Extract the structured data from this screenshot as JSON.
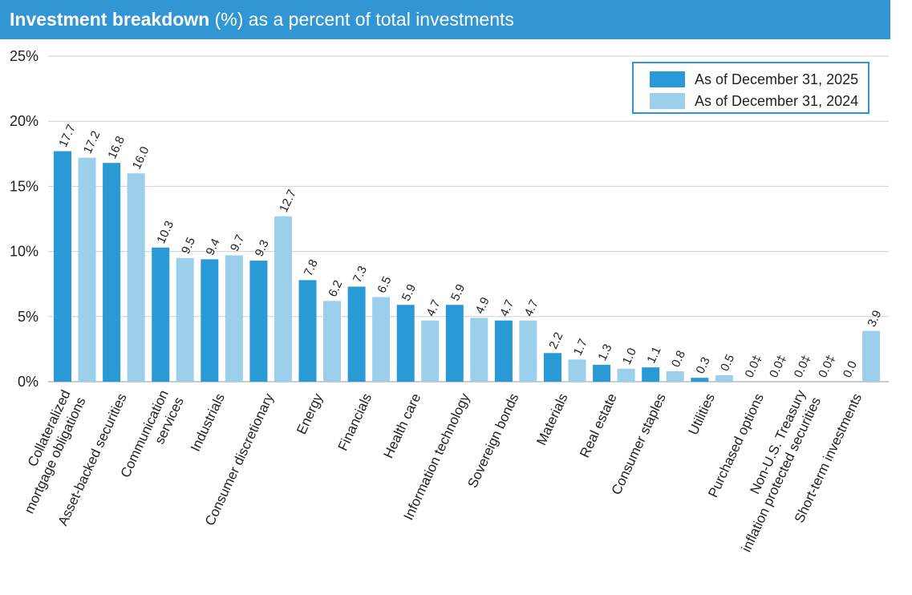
{
  "header": {
    "title_bold": "Investment breakdown",
    "title_rest": " (%) as a percent of total investments"
  },
  "colors": {
    "series_2025": "#2a9ad7",
    "series_2024": "#9bcfeb",
    "header_bg": "#3196d3"
  },
  "chart_data": {
    "type": "bar",
    "title": "Investment breakdown (%) as a percent of total investments",
    "ylim": [
      0,
      25
    ],
    "yticks": [
      "0%",
      "5%",
      "10%",
      "15%",
      "20%",
      "25%"
    ],
    "grid": true,
    "legend_position": "top-right",
    "legend": [
      "As of December 31, 2025",
      "As of December 31, 2024"
    ],
    "categories": [
      [
        "Collateralized",
        "mortgage obligations"
      ],
      [
        "Asset-backed securities"
      ],
      [
        "Communication",
        "services"
      ],
      [
        "Industrials"
      ],
      [
        "Consumer discretionary"
      ],
      [
        "Energy"
      ],
      [
        "Financials"
      ],
      [
        "Health care"
      ],
      [
        "Information technology"
      ],
      [
        "Sovereign bonds"
      ],
      [
        "Materials"
      ],
      [
        "Real estate"
      ],
      [
        "Consumer staples"
      ],
      [
        "Utilities"
      ],
      [
        "Purchased options"
      ],
      [
        "Non-U.S. Treasury",
        "inflation protected securities"
      ],
      [
        "Short-term investments"
      ]
    ],
    "series": [
      {
        "name": "As of December 31, 2025",
        "values": [
          17.7,
          16.8,
          10.3,
          9.4,
          9.3,
          7.8,
          7.3,
          5.9,
          5.9,
          4.7,
          2.2,
          1.3,
          1.1,
          0.3,
          0.0,
          0.0,
          0.0
        ],
        "labels": [
          "17.7",
          "16.8",
          "10.3",
          "9.4",
          "9.3",
          "7.8",
          "7.3",
          "5.9",
          "5.9",
          "4.7",
          "2.2",
          "1.3",
          "1.1",
          "0.3",
          "0.0‡",
          "0.0‡",
          "0.0"
        ]
      },
      {
        "name": "As of December 31, 2024",
        "values": [
          17.2,
          16.0,
          9.5,
          9.7,
          12.7,
          6.2,
          6.5,
          4.7,
          4.9,
          4.7,
          1.7,
          1.0,
          0.8,
          0.5,
          0.0,
          0.0,
          3.9
        ],
        "labels": [
          "17.2",
          "16.0",
          "9.5",
          "9.7",
          "12.7",
          "6.2",
          "6.5",
          "4.7",
          "4.9",
          "4.7",
          "1.7",
          "1.0",
          "0.8",
          "0.5",
          "0.0‡",
          "0.0‡",
          "3.9"
        ]
      }
    ]
  }
}
